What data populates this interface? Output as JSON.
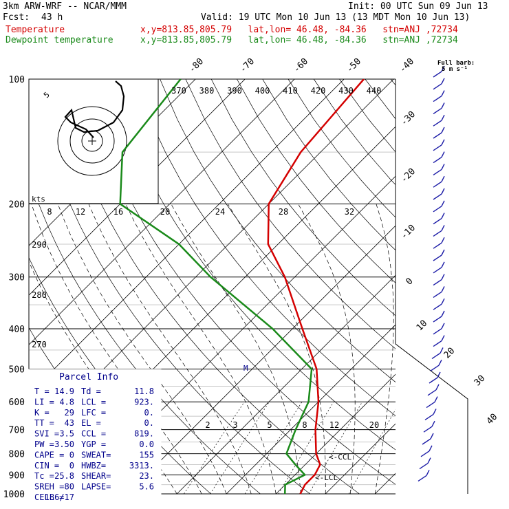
{
  "header": {
    "model": "3km ARW-WRF -- NCAR/MMM",
    "init": "Init: 00 UTC Sun 09 Jun 13",
    "fcst_label": "Fcst:",
    "fcst_value": "43 h",
    "valid": "Valid: 19 UTC Mon 10 Jun 13 (13 MDT Mon 10 Jun 13)",
    "lines": [
      {
        "name": "Temperature",
        "info": "x,y=813.85,805.79   lat,lon= 46.48, -84.36   stn=ANJ ,72734",
        "color": "#d40000"
      },
      {
        "name": "Dewpoint temperature",
        "info": "x,y=813.85,805.79   lat,lon= 46.48, -84.36   stn=ANJ ,72734",
        "color": "#1a8a1a"
      }
    ]
  },
  "chart_data": {
    "type": "line",
    "pressure_levels": [
      100,
      200,
      300,
      400,
      500,
      600,
      700,
      800,
      900,
      1000
    ],
    "isotherm_labels": [
      -80,
      -70,
      -60,
      -50,
      -40,
      -30,
      -20,
      -10,
      0,
      10,
      20,
      30,
      40
    ],
    "potential_temp_labels": [
      370,
      380,
      390,
      400,
      410,
      420,
      430,
      440
    ],
    "mixing_ratio_labels": [
      "2",
      "3",
      "5",
      "8",
      "12",
      "20"
    ],
    "hodograph_ring_labels": [
      "8",
      "12",
      "16",
      "20",
      "24",
      "28",
      "32"
    ],
    "hodograph_unit": "kts",
    "hodograph_ring_marker": "5",
    "theta_labels": [
      "290",
      "280",
      "270"
    ],
    "barb_note": "Full barb:",
    "barb_note2": "5 m s⁻¹",
    "annotations": {
      "ccl": "<-CCL",
      "lcl": "<-LCL",
      "m": "M"
    },
    "series": [
      {
        "name": "Temperature",
        "color": "#d40000",
        "points": [
          [
            100,
            -56
          ],
          [
            150,
            -54
          ],
          [
            200,
            -50
          ],
          [
            250,
            -42
          ],
          [
            300,
            -32
          ],
          [
            400,
            -18
          ],
          [
            500,
            -7
          ],
          [
            600,
            0
          ],
          [
            700,
            5
          ],
          [
            800,
            10
          ],
          [
            850,
            13
          ],
          [
            900,
            14
          ],
          [
            950,
            14
          ],
          [
            1000,
            14.9
          ]
        ]
      },
      {
        "name": "Dewpoint temperature",
        "color": "#1a8a1a",
        "points": [
          [
            100,
            -93
          ],
          [
            150,
            -90
          ],
          [
            200,
            -80
          ],
          [
            250,
            -60
          ],
          [
            300,
            -47
          ],
          [
            400,
            -24
          ],
          [
            500,
            -8
          ],
          [
            600,
            -2
          ],
          [
            700,
            1
          ],
          [
            800,
            4
          ],
          [
            850,
            8
          ],
          [
            900,
            12
          ],
          [
            950,
            10
          ],
          [
            1000,
            11.8
          ]
        ]
      }
    ]
  },
  "parcel": {
    "title": "Parcel Info",
    "rows": [
      [
        "T  =",
        "14.9",
        "Td  =",
        "11.8"
      ],
      [
        "LI =",
        "4.8",
        "LCL =",
        "923."
      ],
      [
        "K  =",
        "29",
        "LFC =",
        "0."
      ],
      [
        "TT =",
        "43",
        "EL  =",
        "0."
      ],
      [
        "SVI =",
        "3.5",
        "CCL =",
        "819."
      ],
      [
        "PW =",
        "3.50",
        "YGP =",
        "0.0"
      ],
      [
        "CAPE =",
        "0",
        "SWEAT=",
        "155"
      ],
      [
        "CIN =",
        "0",
        "HWBZ=",
        "3313."
      ],
      [
        "Tc =",
        "25.8",
        "SHEAR=",
        "23."
      ],
      [
        "SREH =",
        "80",
        "LAPSE=",
        "5.6"
      ],
      [
        "CELL =",
        "186/17",
        "",
        ""
      ]
    ]
  }
}
